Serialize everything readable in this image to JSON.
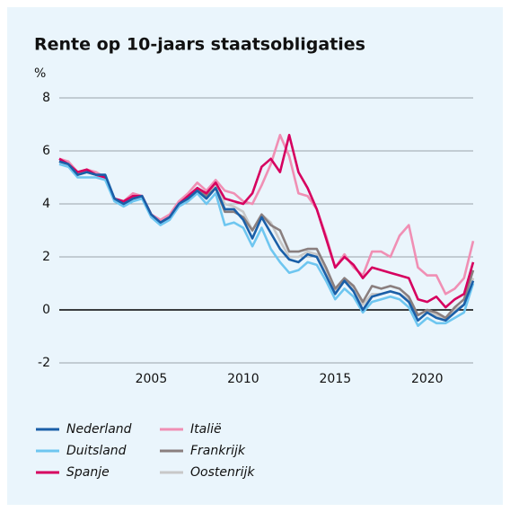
{
  "chart_data": {
    "type": "line",
    "title": "Rente op 10-jaars staatsobligaties",
    "y_label": "%",
    "x": [
      2000,
      2000.5,
      2001,
      2001.5,
      2002,
      2002.5,
      2003,
      2003.5,
      2004,
      2004.5,
      2005,
      2005.5,
      2006,
      2006.5,
      2007,
      2007.5,
      2008,
      2008.5,
      2009,
      2009.5,
      2010,
      2010.5,
      2011,
      2011.5,
      2012,
      2012.5,
      2013,
      2013.5,
      2014,
      2014.5,
      2015,
      2015.5,
      2016,
      2016.5,
      2017,
      2017.5,
      2018,
      2018.5,
      2019,
      2019.5,
      2020,
      2020.5,
      2021,
      2021.5,
      2022,
      2022.5
    ],
    "series": [
      {
        "name": "Nederland",
        "color": "#1a5fa8",
        "values": [
          5.6,
          5.5,
          5.1,
          5.2,
          5.1,
          5.1,
          4.2,
          4.0,
          4.2,
          4.3,
          3.6,
          3.3,
          3.5,
          4.0,
          4.2,
          4.5,
          4.2,
          4.6,
          3.8,
          3.8,
          3.4,
          2.7,
          3.5,
          2.9,
          2.3,
          1.9,
          1.8,
          2.1,
          2.0,
          1.3,
          0.6,
          1.1,
          0.7,
          0.0,
          0.5,
          0.6,
          0.7,
          0.6,
          0.3,
          -0.4,
          -0.1,
          -0.3,
          -0.4,
          -0.1,
          0.2,
          1.1
        ]
      },
      {
        "name": "Duitsland",
        "color": "#6ec6f0",
        "values": [
          5.5,
          5.4,
          5.0,
          5.0,
          5.0,
          4.9,
          4.1,
          3.9,
          4.1,
          4.2,
          3.5,
          3.2,
          3.4,
          3.9,
          4.1,
          4.4,
          4.0,
          4.4,
          3.2,
          3.3,
          3.1,
          2.4,
          3.1,
          2.3,
          1.8,
          1.4,
          1.5,
          1.8,
          1.7,
          1.1,
          0.4,
          0.8,
          0.5,
          -0.1,
          0.3,
          0.4,
          0.5,
          0.4,
          0.1,
          -0.6,
          -0.3,
          -0.5,
          -0.5,
          -0.3,
          -0.1,
          1.0
        ]
      },
      {
        "name": "Spanje",
        "color": "#d6005f",
        "values": [
          5.7,
          5.5,
          5.2,
          5.3,
          5.1,
          5.0,
          4.2,
          4.1,
          4.3,
          4.3,
          3.6,
          3.3,
          3.5,
          4.0,
          4.3,
          4.6,
          4.4,
          4.8,
          4.2,
          4.1,
          4.0,
          4.4,
          5.4,
          5.7,
          5.2,
          6.6,
          5.2,
          4.6,
          3.8,
          2.7,
          1.6,
          2.0,
          1.7,
          1.2,
          1.6,
          1.5,
          1.4,
          1.3,
          1.2,
          0.4,
          0.3,
          0.5,
          0.1,
          0.4,
          0.6,
          1.8
        ]
      },
      {
        "name": "Italië",
        "color": "#f08fb4",
        "values": [
          5.7,
          5.6,
          5.2,
          5.3,
          5.2,
          5.0,
          4.2,
          4.1,
          4.4,
          4.3,
          3.6,
          3.4,
          3.6,
          4.1,
          4.4,
          4.8,
          4.5,
          4.9,
          4.5,
          4.4,
          4.1,
          4.0,
          4.7,
          5.5,
          6.6,
          5.8,
          4.4,
          4.3,
          3.8,
          2.8,
          1.6,
          2.1,
          1.6,
          1.3,
          2.2,
          2.2,
          2.0,
          2.8,
          3.2,
          1.6,
          1.3,
          1.3,
          0.6,
          0.8,
          1.2,
          2.6
        ]
      },
      {
        "name": "Frankrijk",
        "color": "#8a7f7f",
        "values": [
          5.6,
          5.5,
          5.1,
          5.2,
          5.1,
          5.0,
          4.2,
          4.0,
          4.2,
          4.3,
          3.6,
          3.3,
          3.5,
          4.0,
          4.2,
          4.6,
          4.3,
          4.6,
          3.7,
          3.7,
          3.5,
          3.0,
          3.6,
          3.2,
          3.0,
          2.2,
          2.2,
          2.3,
          2.3,
          1.6,
          0.8,
          1.2,
          0.9,
          0.3,
          0.9,
          0.8,
          0.9,
          0.8,
          0.5,
          -0.2,
          0.0,
          -0.1,
          -0.3,
          0.1,
          0.4,
          1.5
        ]
      },
      {
        "name": "Oostenrijk",
        "color": "#c8c8c8",
        "values": [
          5.6,
          5.5,
          5.1,
          5.3,
          5.1,
          5.0,
          4.2,
          4.0,
          4.2,
          4.3,
          3.6,
          3.3,
          3.5,
          4.0,
          4.3,
          4.6,
          4.4,
          4.7,
          4.0,
          3.9,
          3.7,
          3.0,
          3.6,
          3.3,
          2.6,
          2.0,
          2.0,
          2.2,
          2.1,
          1.4,
          0.7,
          1.1,
          0.8,
          0.2,
          0.6,
          0.6,
          0.7,
          0.6,
          0.4,
          -0.2,
          0.0,
          -0.2,
          -0.4,
          0.0,
          0.2,
          1.2
        ]
      }
    ],
    "xlim": [
      2000,
      2022.5
    ],
    "xticks": [
      2005,
      2010,
      2015,
      2020
    ],
    "ylim": [
      -2,
      8
    ],
    "yticks": [
      -2,
      0,
      2,
      4,
      6,
      8
    ],
    "grid": true
  }
}
